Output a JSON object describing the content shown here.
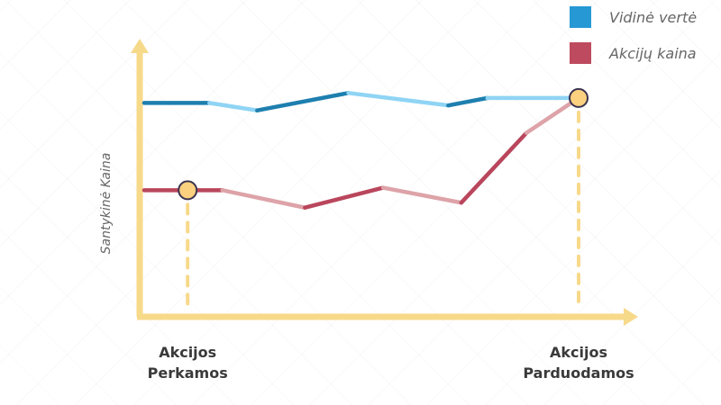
{
  "chart_data": {
    "type": "line",
    "ylabel": "Santykinė Kaina",
    "xlabel": "",
    "grid": false,
    "legend_placement": "top-right",
    "series": [
      {
        "name": "Vidinė vertė",
        "color": "#1e7faf",
        "light_color": "#8fd4f4",
        "legend_color": "#2699d4",
        "points": [
          [
            0,
            0.8
          ],
          [
            0.15,
            0.8
          ],
          [
            0.26,
            0.77
          ],
          [
            0.47,
            0.84
          ],
          [
            0.7,
            0.79
          ],
          [
            0.79,
            0.82
          ],
          [
            1.0,
            0.82
          ]
        ]
      },
      {
        "name": "Akcijų kaina",
        "color": "#b9465c",
        "light_color": "#dda3a8",
        "legend_color": "#bd4a5e",
        "points": [
          [
            0,
            0.45
          ],
          [
            0.18,
            0.45
          ],
          [
            0.37,
            0.38
          ],
          [
            0.55,
            0.46
          ],
          [
            0.73,
            0.4
          ],
          [
            0.88,
            0.68
          ],
          [
            1.0,
            0.82
          ]
        ]
      }
    ],
    "markers": [
      {
        "x": 0.1,
        "y": 0.45,
        "lines": [
          "Akcijos",
          "Perkamos"
        ]
      },
      {
        "x": 1.0,
        "y": 0.82,
        "lines": [
          "Akcijos",
          "Parduodamos"
        ]
      }
    ],
    "axis_color": "#f7d98a",
    "marker_fill": "#fbd07f",
    "marker_stroke": "#3a3350"
  }
}
